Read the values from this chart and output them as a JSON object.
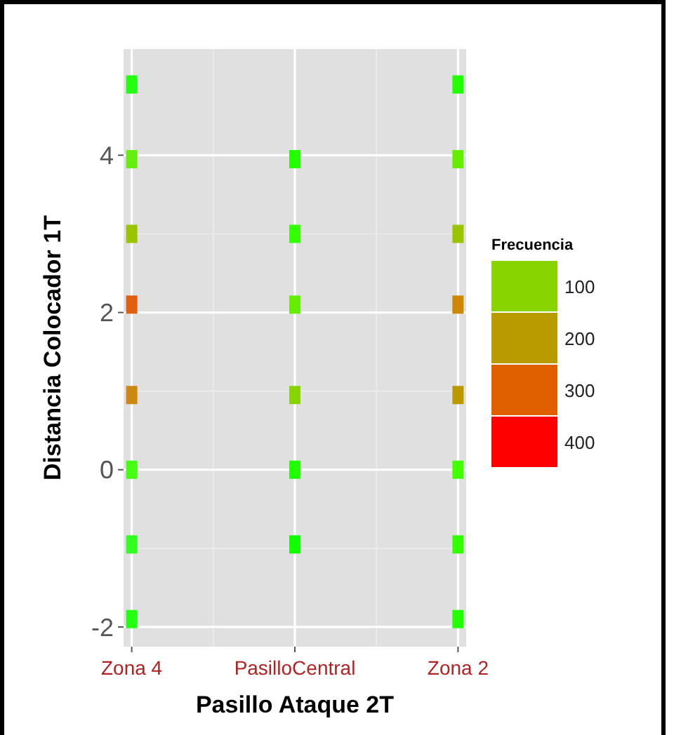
{
  "chart_data": {
    "type": "scatter",
    "xlabel": "Pasillo Ataque 2T",
    "ylabel": "Distancia Colocador 1T",
    "legend_title": "Frecuencia",
    "categories": [
      "Zona 4",
      "PasilloCentral",
      "Zona 2"
    ],
    "ylim": [
      -2.25,
      5.35
    ],
    "yticks": [
      -2,
      0,
      2,
      4
    ],
    "grid": true,
    "marker": "square",
    "clim": [
      50,
      450
    ],
    "cticks": [
      100,
      200,
      300,
      400
    ],
    "colors": [
      "#88d400",
      "#b99b00",
      "#e06000",
      "#ff0000"
    ],
    "series": [
      {
        "x": [
          "Zona 4",
          "Zona 4",
          "Zona 4",
          "Zona 4",
          "Zona 4",
          "Zona 4",
          "Zona 4",
          "Zona 4"
        ],
        "values": [
          4.9,
          3.95,
          3.0,
          2.1,
          0.95,
          0,
          -0.95,
          -1.9
        ],
        "colors": [
          "#22ff11",
          "#66ee11",
          "#99c400",
          "#e06010",
          "#cc8810",
          "#44ff11",
          "#33ff22",
          "#22ff11"
        ]
      },
      {
        "x": [
          "PasilloCentral",
          "PasilloCentral",
          "PasilloCentral",
          "PasilloCentral",
          "PasilloCentral",
          "PasilloCentral"
        ],
        "values": [
          3.95,
          3.0,
          2.1,
          0.95,
          0,
          -0.95
        ],
        "colors": [
          "#22ff00",
          "#33ff00",
          "#66ee00",
          "#88d400",
          "#22ff00",
          "#11ff00"
        ]
      },
      {
        "x": [
          "Zona 2",
          "Zona 2",
          "Zona 2",
          "Zona 2",
          "Zona 2",
          "Zona 2",
          "Zona 2",
          "Zona 2"
        ],
        "values": [
          4.9,
          3.95,
          3.0,
          2.1,
          0.95,
          0,
          -0.95,
          -1.9
        ],
        "colors": [
          "#22ff00",
          "#66ee00",
          "#99c400",
          "#cc8800",
          "#bb9900",
          "#44ff00",
          "#33ff00",
          "#22ff00"
        ]
      }
    ]
  }
}
